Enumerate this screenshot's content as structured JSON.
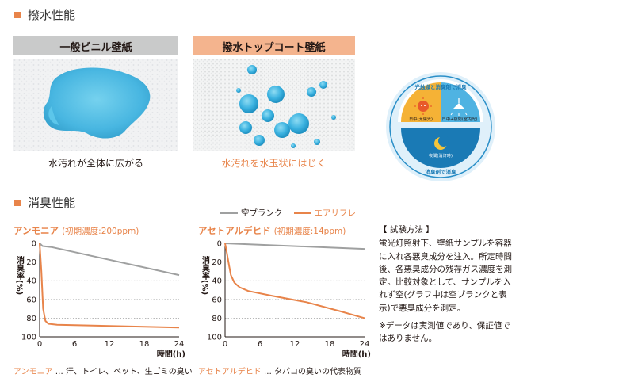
{
  "section1": {
    "title": "撥水性能"
  },
  "panel_left": {
    "title": "一般ビニル壁紙",
    "caption": "水汚れが全体に広がる"
  },
  "panel_right": {
    "title": "撥水トップコート壁紙",
    "caption": "水汚れを水玉状にはじく"
  },
  "badge": {
    "top_label": "光触媒と消臭剤で消臭",
    "day_sun_label": "日中(太陽光)",
    "day_light_label": "日中+夜間(室内光)",
    "night_label": "夜間(消灯時)",
    "bottom_label": "消臭剤で消臭",
    "colors": {
      "sun": "#f5b236",
      "light": "#4fb3e2",
      "night": "#1a7ab5",
      "ring": "#2a8fc8"
    }
  },
  "section2": {
    "title": "消臭性能"
  },
  "legend": {
    "blank": "空ブランク",
    "product": "エアリフレ"
  },
  "colors": {
    "accent": "#e8844a",
    "blank": "#9fa0a0"
  },
  "chart_data": [
    {
      "type": "line",
      "title": "アンモニア",
      "subtitle": "(初期濃度:200ppm)",
      "ylabel": "消臭率(%)",
      "xlabel": "時間(h)",
      "x_ticks": [
        "0",
        "6",
        "12",
        "18",
        "24"
      ],
      "y_ticks": [
        "0",
        "20",
        "40",
        "60",
        "80",
        "100"
      ],
      "xlim": [
        0,
        24
      ],
      "ylim": [
        0,
        100
      ],
      "y_inverted": true,
      "grid": "horizontal-dotted",
      "series": [
        {
          "name": "空ブランク",
          "color": "#9fa0a0",
          "points": [
            [
              0,
              0
            ],
            [
              0.5,
              3
            ],
            [
              2,
              4
            ],
            [
              24,
              34
            ]
          ]
        },
        {
          "name": "エアリフレ",
          "color": "#e8844a",
          "points": [
            [
              0,
              0
            ],
            [
              0.3,
              30
            ],
            [
              0.6,
              70
            ],
            [
              1,
              83
            ],
            [
              1.5,
              86
            ],
            [
              3,
              87
            ],
            [
              24,
              90
            ]
          ]
        }
      ],
      "footnote_name": "アンモニア",
      "footnote_text": " … 汗、トイレ、ペット、生ゴミの臭い"
    },
    {
      "type": "line",
      "title": "アセトアルデヒド",
      "subtitle": "(初期濃度:14ppm)",
      "ylabel": "消臭率(%)",
      "xlabel": "時間(h)",
      "x_ticks": [
        "0",
        "6",
        "12",
        "18",
        "24"
      ],
      "y_ticks": [
        "0",
        "20",
        "40",
        "60",
        "80",
        "100"
      ],
      "xlim": [
        0,
        24
      ],
      "ylim": [
        0,
        100
      ],
      "y_inverted": true,
      "grid": "horizontal-dotted",
      "series": [
        {
          "name": "空ブランク",
          "color": "#9fa0a0",
          "points": [
            [
              0,
              0
            ],
            [
              24,
              6
            ]
          ]
        },
        {
          "name": "エアリフレ",
          "color": "#e8844a",
          "points": [
            [
              0,
              0
            ],
            [
              0.3,
              10
            ],
            [
              0.7,
              24
            ],
            [
              1,
              34
            ],
            [
              1.6,
              42
            ],
            [
              2.5,
              47
            ],
            [
              4,
              51
            ],
            [
              8,
              56
            ],
            [
              14,
              63
            ],
            [
              20,
              73
            ],
            [
              24,
              80
            ]
          ]
        }
      ],
      "footnote_name": "アセトアルデヒド",
      "footnote_text": " … タバコの臭いの代表物質"
    }
  ],
  "test_method": {
    "heading": "【 試験方法 】",
    "body": "蛍光灯照射下、壁紙サンプルを容器に入れ各悪臭成分を注入。所定時間後、各悪臭成分の残存ガス濃度を測定。比較対象として、サンプルを入れず空(グラフ中は空ブランクと表示)で悪臭成分を測定。",
    "note": "※データは実測値であり、保証値ではありません。"
  }
}
